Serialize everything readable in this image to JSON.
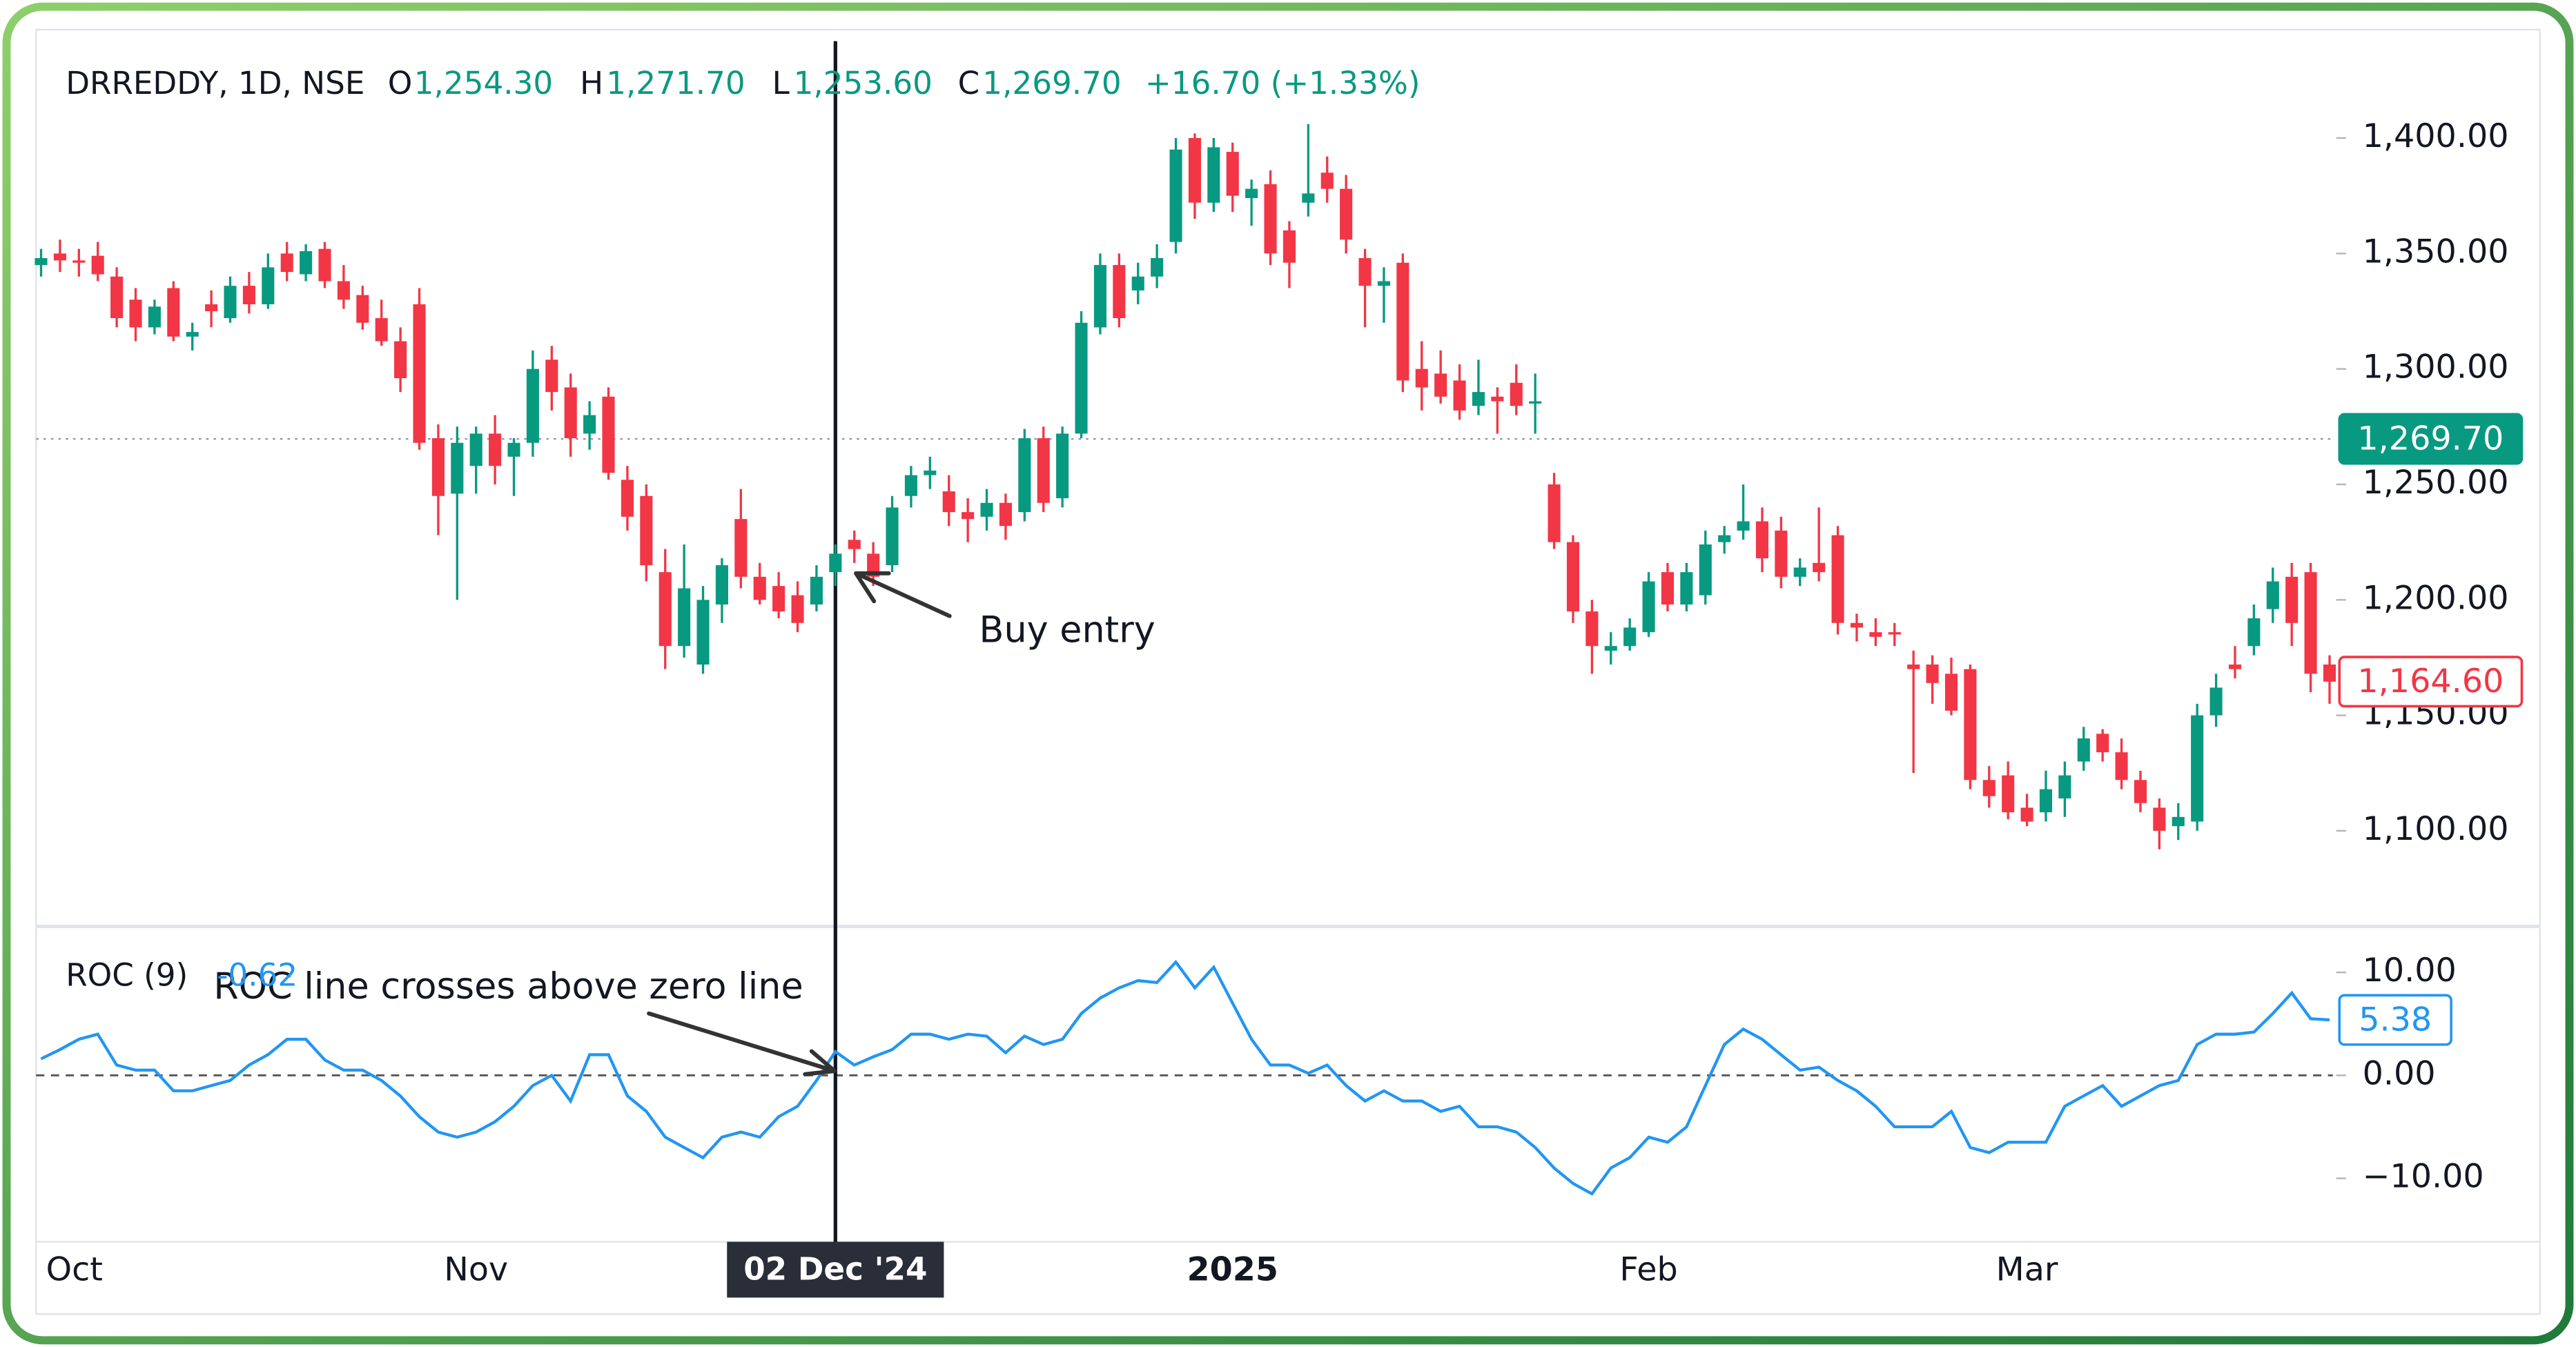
{
  "chart_data": [
    {
      "type": "candlestick",
      "title": "DRREDDY, 1D, NSE",
      "ohlc_legend": [
        {
          "key": "O",
          "text": "1,254.30"
        },
        {
          "key": "H",
          "text": "1,271.70"
        },
        {
          "key": "L",
          "text": "1,253.60"
        },
        {
          "key": "C",
          "text": "1,269.70"
        }
      ],
      "change": "+16.70 (+1.33%)",
      "up_color": "#089981",
      "down_color": "#f23645",
      "categories": [
        "Oct",
        null,
        null,
        null,
        null,
        null,
        null,
        null,
        null,
        null,
        null,
        null,
        null,
        null,
        null,
        null,
        null,
        null,
        null,
        null,
        null,
        null,
        null,
        "Nov",
        null,
        null,
        null,
        null,
        null,
        null,
        null,
        null,
        null,
        null,
        null,
        null,
        null,
        null,
        null,
        null,
        null,
        null,
        {
          "label": "02 Dec '24",
          "crosshair": true
        },
        null,
        null,
        null,
        null,
        null,
        null,
        null,
        null,
        null,
        null,
        null,
        null,
        null,
        null,
        null,
        null,
        null,
        null,
        null,
        null,
        "2025",
        null,
        null,
        null,
        null,
        null,
        null,
        null,
        null,
        null,
        null,
        null,
        null,
        null,
        null,
        null,
        null,
        null,
        null,
        null,
        null,
        null,
        "Feb",
        null,
        null,
        null,
        null,
        null,
        null,
        null,
        null,
        null,
        null,
        null,
        null,
        null,
        null,
        null,
        null,
        null,
        null,
        null,
        "Mar",
        null,
        null,
        null,
        null,
        null,
        null,
        null,
        null,
        null,
        null,
        null,
        null,
        null,
        null,
        null,
        null
      ],
      "open": [
        1345,
        1350,
        1347,
        1349,
        1340,
        1330,
        1318,
        1335,
        1314,
        1328,
        1322,
        1336,
        1328,
        1350,
        1341,
        1352,
        1338,
        1332,
        1322,
        1312,
        1328,
        1270,
        1246,
        1258,
        1272,
        1262,
        1268,
        1304,
        1292,
        1272,
        1288,
        1252,
        1245,
        1212,
        1180,
        1172,
        1198,
        1235,
        1210,
        1206,
        1202,
        1198,
        1212,
        1226,
        1220,
        1215,
        1245,
        1254,
        1247,
        1238,
        1236,
        1242,
        1238,
        1270,
        1244,
        1272,
        1318,
        1345,
        1334,
        1340,
        1355,
        1400,
        1372,
        1394,
        1374,
        1380,
        1360,
        1372,
        1385,
        1378,
        1348,
        1336,
        1346,
        1300,
        1298,
        1295,
        1284,
        1288,
        1294,
        1285,
        1250,
        1225,
        1195,
        1178,
        1180,
        1186,
        1212,
        1198,
        1202,
        1225,
        1230,
        1234,
        1230,
        1210,
        1216,
        1228,
        1190,
        1186,
        1186,
        1172,
        1172,
        1168,
        1170,
        1122,
        1124,
        1110,
        1108,
        1114,
        1130,
        1142,
        1134,
        1122,
        1110,
        1102,
        1104,
        1150,
        1172,
        1180,
        1196,
        1210,
        1212,
        1172
      ],
      "high": [
        1352,
        1356,
        1352,
        1355,
        1344,
        1335,
        1330,
        1338,
        1320,
        1334,
        1340,
        1342,
        1350,
        1355,
        1354,
        1355,
        1345,
        1336,
        1330,
        1318,
        1335,
        1276,
        1275,
        1275,
        1280,
        1270,
        1308,
        1310,
        1298,
        1286,
        1292,
        1258,
        1250,
        1222,
        1224,
        1206,
        1218,
        1248,
        1216,
        1212,
        1208,
        1215,
        1224,
        1230,
        1225,
        1245,
        1258,
        1262,
        1254,
        1244,
        1248,
        1246,
        1274,
        1275,
        1275,
        1325,
        1350,
        1350,
        1346,
        1354,
        1400,
        1402,
        1400,
        1398,
        1382,
        1386,
        1364,
        1406,
        1392,
        1384,
        1352,
        1344,
        1350,
        1312,
        1308,
        1302,
        1304,
        1292,
        1302,
        1298,
        1255,
        1228,
        1200,
        1186,
        1192,
        1212,
        1216,
        1216,
        1230,
        1232,
        1250,
        1240,
        1236,
        1218,
        1240,
        1232,
        1194,
        1192,
        1190,
        1178,
        1176,
        1175,
        1172,
        1128,
        1130,
        1116,
        1126,
        1130,
        1145,
        1144,
        1140,
        1126,
        1114,
        1112,
        1155,
        1168,
        1180,
        1198,
        1214,
        1216,
        1216,
        1176
      ],
      "low": [
        1340,
        1342,
        1340,
        1338,
        1318,
        1312,
        1315,
        1312,
        1308,
        1318,
        1320,
        1324,
        1326,
        1338,
        1338,
        1335,
        1326,
        1317,
        1310,
        1290,
        1265,
        1228,
        1200,
        1246,
        1250,
        1245,
        1262,
        1282,
        1262,
        1265,
        1252,
        1230,
        1208,
        1170,
        1175,
        1168,
        1190,
        1205,
        1198,
        1192,
        1186,
        1195,
        1206,
        1216,
        1206,
        1212,
        1240,
        1248,
        1232,
        1225,
        1230,
        1226,
        1234,
        1238,
        1240,
        1270,
        1315,
        1318,
        1328,
        1335,
        1350,
        1365,
        1368,
        1368,
        1362,
        1345,
        1335,
        1366,
        1372,
        1350,
        1318,
        1320,
        1290,
        1282,
        1285,
        1278,
        1280,
        1272,
        1280,
        1272,
        1222,
        1190,
        1168,
        1172,
        1178,
        1184,
        1195,
        1195,
        1198,
        1220,
        1226,
        1212,
        1205,
        1206,
        1208,
        1185,
        1182,
        1180,
        1180,
        1125,
        1155,
        1150,
        1118,
        1110,
        1105,
        1102,
        1104,
        1106,
        1126,
        1130,
        1118,
        1108,
        1092,
        1096,
        1100,
        1145,
        1166,
        1176,
        1190,
        1180,
        1160,
        1155
      ],
      "close": [
        1348,
        1347,
        1346,
        1341,
        1322,
        1318,
        1327,
        1314,
        1316,
        1325,
        1336,
        1328,
        1344,
        1342,
        1351,
        1338,
        1330,
        1320,
        1312,
        1296,
        1268,
        1245,
        1268,
        1272,
        1258,
        1268,
        1300,
        1290,
        1270,
        1280,
        1255,
        1236,
        1215,
        1180,
        1205,
        1200,
        1215,
        1210,
        1200,
        1195,
        1190,
        1210,
        1220,
        1222,
        1210,
        1240,
        1254,
        1256,
        1238,
        1235,
        1242,
        1232,
        1270,
        1242,
        1272,
        1320,
        1345,
        1322,
        1340,
        1348,
        1395,
        1372,
        1396,
        1375,
        1378,
        1350,
        1346,
        1376,
        1378,
        1356,
        1336,
        1338,
        1295,
        1292,
        1288,
        1282,
        1290,
        1286,
        1284,
        1286,
        1225,
        1195,
        1180,
        1180,
        1188,
        1208,
        1198,
        1212,
        1224,
        1228,
        1234,
        1218,
        1210,
        1214,
        1212,
        1190,
        1188,
        1184,
        1185,
        1170,
        1164,
        1152,
        1122,
        1115,
        1108,
        1104,
        1118,
        1124,
        1140,
        1134,
        1122,
        1112,
        1100,
        1106,
        1150,
        1162,
        1170,
        1192,
        1208,
        1190,
        1168,
        1164.6
      ],
      "ylim": [
        1060,
        1445.5
      ],
      "yticks": [
        {
          "value": 1100,
          "label": "1,100.00"
        },
        {
          "value": 1150,
          "label": "1,150.00"
        },
        {
          "value": 1200,
          "label": "1,200.00"
        },
        {
          "value": 1250,
          "label": "1,250.00"
        },
        {
          "value": 1300,
          "label": "1,300.00"
        },
        {
          "value": 1350,
          "label": "1,350.00"
        },
        {
          "value": 1400,
          "label": "1,400.00"
        }
      ],
      "price_tags": [
        {
          "value": 1269.7,
          "label": "1,269.70",
          "color": "#089981",
          "style": "filled"
        },
        {
          "value": 1164.6,
          "label": "1,164.60",
          "color": "#f23645",
          "style": "outline"
        }
      ],
      "annotations": [
        "Buy entry"
      ]
    },
    {
      "type": "line",
      "title": "ROC (9)",
      "legend_value": -0.62,
      "color": "#2196f3",
      "values": [
        1.6,
        2.5,
        3.5,
        4,
        1,
        0.5,
        0.5,
        -1.5,
        -1.5,
        -1,
        -0.5,
        1,
        2,
        3.5,
        3.5,
        1.5,
        0.5,
        0.5,
        -0.5,
        -2,
        -4,
        -5.5,
        -6,
        -5.5,
        -4.5,
        -3,
        -1,
        0,
        -2.5,
        2,
        2,
        -2,
        -3.5,
        -6,
        -7,
        -8,
        -6,
        -5.5,
        -6,
        -4,
        -3,
        -0.5,
        2.3,
        1,
        1.8,
        2.5,
        4,
        4,
        3.5,
        4,
        3.8,
        2.2,
        3.8,
        3,
        3.5,
        6,
        7.5,
        8.5,
        9.2,
        9,
        11,
        8.5,
        10.5,
        7,
        3.5,
        1,
        1,
        0.2,
        1,
        -1,
        -2.5,
        -1.5,
        -2.5,
        -2.5,
        -3.5,
        -3,
        -5,
        -5,
        -5.5,
        -7,
        -9,
        -10.5,
        -11.5,
        -9,
        -8,
        -6,
        -6.5,
        -5,
        -1,
        3,
        4.5,
        3.5,
        2,
        0.5,
        0.8,
        -0.5,
        -1.5,
        -3,
        -5,
        -5,
        -5,
        -3.5,
        -7,
        -7.5,
        -6.5,
        -6.5,
        -6.5,
        -3,
        -2,
        -1,
        -3,
        -2,
        -1,
        -0.5,
        3,
        4,
        4,
        4.2,
        6,
        8,
        5.5,
        5.38
      ],
      "ylim": [
        -16,
        14.3
      ],
      "yticks": [
        {
          "value": 10,
          "label": "10.00"
        },
        {
          "value": 0,
          "label": "0.00"
        },
        {
          "value": -10,
          "label": "−10.00"
        }
      ],
      "zero_line": true,
      "price_tags": [
        {
          "value": 5.38,
          "color": "#2196f3",
          "style": "outline"
        }
      ],
      "annotations": [
        "ROC line crosses above zero line"
      ]
    }
  ]
}
